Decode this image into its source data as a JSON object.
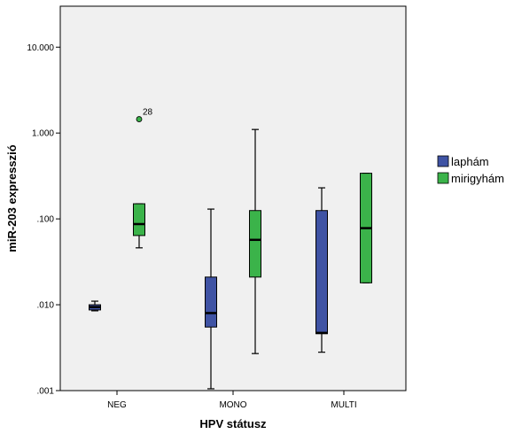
{
  "chart_data": {
    "type": "boxplot",
    "xlabel": "HPV státusz",
    "ylabel": "miR-203 expresszió",
    "yscale": "log",
    "ylim": [
      0.001,
      30
    ],
    "y_ticks": [
      {
        "value": 10,
        "label": "10.000"
      },
      {
        "value": 1,
        "label": "1.000"
      },
      {
        "value": 0.1,
        "label": ".100"
      },
      {
        "value": 0.01,
        "label": ".010"
      },
      {
        "value": 0.001,
        "label": ".001"
      }
    ],
    "categories": [
      "NEG",
      "MONO",
      "MULTI"
    ],
    "legend_position": "right",
    "series": [
      {
        "name": "laphám",
        "color": "#3f53a4",
        "boxes": [
          {
            "category": "NEG",
            "whisker_low": 0.0085,
            "q1": 0.0087,
            "median": 0.0094,
            "q3": 0.01,
            "whisker_high": 0.011
          },
          {
            "category": "MONO",
            "whisker_low": 0.00105,
            "q1": 0.0055,
            "median": 0.008,
            "q3": 0.021,
            "whisker_high": 0.13
          },
          {
            "category": "MULTI",
            "whisker_low": 0.0028,
            "q1": 0.0046,
            "median": 0.0047,
            "q3": 0.125,
            "whisker_high": 0.23
          }
        ],
        "outliers": []
      },
      {
        "name": "mirigyhám",
        "color": "#3bb34a",
        "boxes": [
          {
            "category": "NEG",
            "whisker_low": 0.046,
            "q1": 0.064,
            "median": 0.087,
            "q3": 0.15,
            "whisker_high": 0.15
          },
          {
            "category": "MONO",
            "whisker_low": 0.0027,
            "q1": 0.021,
            "median": 0.057,
            "q3": 0.125,
            "whisker_high": 1.1
          },
          {
            "category": "MULTI",
            "whisker_low": 0.018,
            "q1": 0.018,
            "median": 0.078,
            "q3": 0.34,
            "whisker_high": 0.34
          }
        ],
        "outliers": [
          {
            "category": "NEG",
            "value": 1.45,
            "label": "28"
          }
        ]
      }
    ]
  }
}
